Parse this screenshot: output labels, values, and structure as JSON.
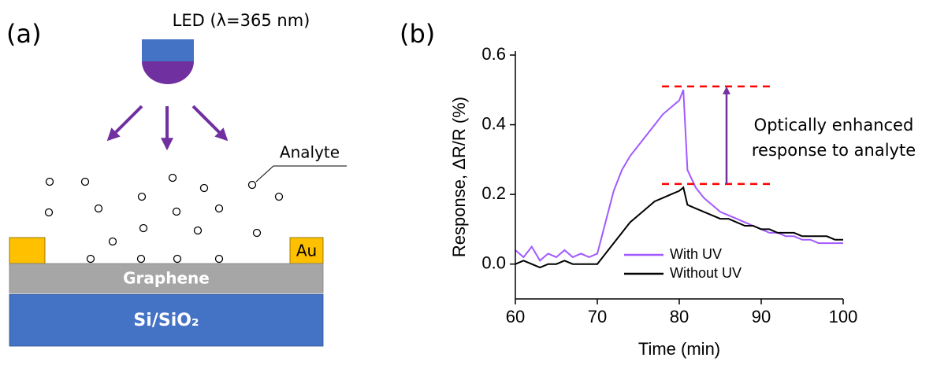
{
  "panel_a": {
    "label": "(a)",
    "led_label": "LED (λ=365 nm)",
    "analyte_label": "Analyte",
    "electrode_label": "Au",
    "graphene_label": "Graphene",
    "substrate_label": "Si/SiO₂"
  },
  "chart_data": {
    "type": "line",
    "panel_label": "(b)",
    "xlabel": "Time (min)",
    "ylabel": "Response, ΔR/R (%)",
    "x": [
      60,
      61,
      62,
      63,
      64,
      65,
      66,
      67,
      68,
      69,
      70,
      71,
      72,
      73,
      74,
      75,
      76,
      77,
      78,
      79,
      80,
      80.5,
      81,
      82,
      83,
      84,
      85,
      86,
      87,
      88,
      89,
      90,
      91,
      92,
      93,
      94,
      95,
      96,
      97,
      98,
      99,
      100
    ],
    "series": [
      {
        "name": "With UV",
        "color": "#a259ff",
        "values": [
          0.04,
          0.02,
          0.05,
          0.01,
          0.03,
          0.02,
          0.04,
          0.02,
          0.03,
          0.02,
          0.03,
          0.12,
          0.21,
          0.27,
          0.31,
          0.34,
          0.37,
          0.4,
          0.43,
          0.45,
          0.47,
          0.5,
          0.27,
          0.22,
          0.19,
          0.17,
          0.15,
          0.14,
          0.13,
          0.12,
          0.11,
          0.1,
          0.09,
          0.09,
          0.08,
          0.08,
          0.07,
          0.07,
          0.06,
          0.06,
          0.06,
          0.06
        ]
      },
      {
        "name": "Without UV",
        "color": "#000000",
        "values": [
          0.0,
          0.01,
          0.0,
          -0.01,
          0.0,
          0.0,
          0.01,
          0.0,
          0.0,
          0.0,
          0.0,
          0.03,
          0.06,
          0.09,
          0.12,
          0.14,
          0.16,
          0.18,
          0.19,
          0.2,
          0.21,
          0.22,
          0.17,
          0.16,
          0.15,
          0.14,
          0.13,
          0.13,
          0.12,
          0.11,
          0.11,
          0.1,
          0.1,
          0.09,
          0.09,
          0.09,
          0.08,
          0.08,
          0.08,
          0.08,
          0.07,
          0.07
        ]
      }
    ],
    "xlim": [
      60,
      100
    ],
    "xticks": [
      60,
      70,
      80,
      90,
      100
    ],
    "ylim": [
      -0.1,
      0.6
    ],
    "yticks": [
      {
        "value": 0,
        "label": "0.0"
      },
      0.2,
      0.4,
      0.6
    ],
    "legend": "lower center",
    "hlines": [
      {
        "value": 0.51,
        "color": "#ff0000"
      },
      {
        "value": 0.23,
        "color": "#ff0000"
      }
    ],
    "annotation": [
      "Optically enhanced",
      "response to analyte"
    ]
  }
}
